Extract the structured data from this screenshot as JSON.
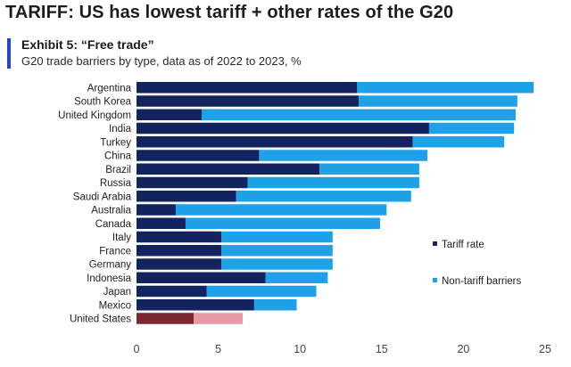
{
  "headline": "TARIFF: US has lowest tariff + other rates of the G20",
  "exhibit": {
    "title": "Exhibit 5: “Free trade”",
    "subtitle": "G20 trade barriers by type, data as of 2022 to 2023, %"
  },
  "colors": {
    "tariff": "#13235f",
    "non_tariff": "#1ea1e6",
    "us_tariff": "#7b2630",
    "us_non_tariff": "#e79aa6",
    "accent": "#1f47c8"
  },
  "chart_data": {
    "type": "bar",
    "orientation": "horizontal",
    "stacked": true,
    "categories": [
      "Argentina",
      "South Korea",
      "United Kingdom",
      "India",
      "Turkey",
      "China",
      "Brazil",
      "Russia",
      "Saudi Arabia",
      "Australia",
      "Canada",
      "Italy",
      "France",
      "Germany",
      "Indonesia",
      "Japan",
      "Mexico",
      "United States"
    ],
    "series": [
      {
        "name": "Tariff rate",
        "values": [
          13.5,
          13.6,
          4.0,
          17.9,
          16.9,
          7.5,
          11.2,
          6.8,
          6.1,
          2.4,
          3.0,
          5.2,
          5.2,
          5.2,
          7.9,
          4.3,
          7.2,
          3.5
        ]
      },
      {
        "name": "Non-tariff barriers",
        "values": [
          10.8,
          9.7,
          19.2,
          5.2,
          5.6,
          10.3,
          6.1,
          10.5,
          10.7,
          12.9,
          11.9,
          6.8,
          6.8,
          6.8,
          3.8,
          6.7,
          2.6,
          3.0
        ]
      }
    ],
    "highlight_category": "United States",
    "xlim": [
      0,
      25
    ],
    "xticks": [
      0,
      5,
      10,
      15,
      20,
      25
    ],
    "xlabel": "",
    "ylabel": "",
    "grid": false,
    "legend": [
      {
        "label": "Tariff rate",
        "position": "right"
      },
      {
        "label": "Non-tariff barriers",
        "position": "right"
      }
    ]
  }
}
